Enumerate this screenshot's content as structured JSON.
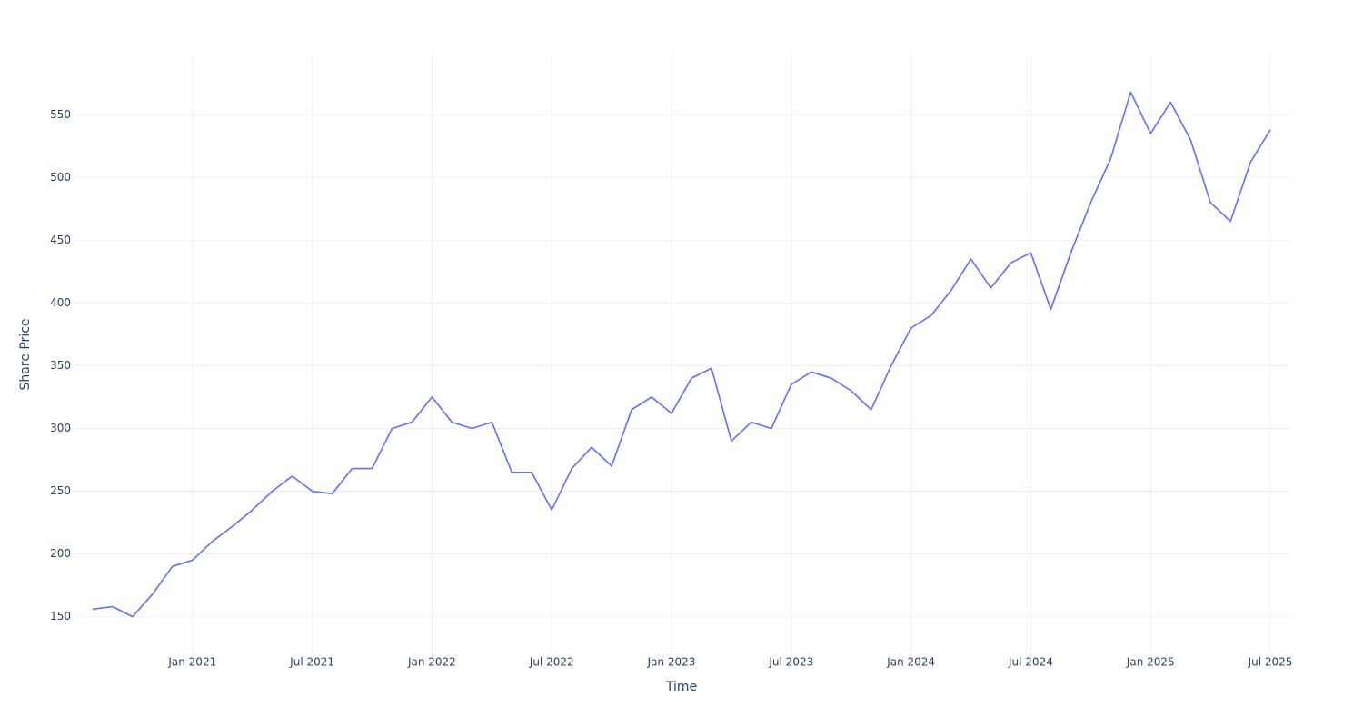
{
  "chart_data": {
    "type": "line",
    "x_label": "Time",
    "y_label": "Share Price",
    "x": [
      "2020-08",
      "2020-09",
      "2020-10",
      "2020-11",
      "2020-12",
      "2021-01",
      "2021-02",
      "2021-03",
      "2021-04",
      "2021-05",
      "2021-06",
      "2021-07",
      "2021-08",
      "2021-09",
      "2021-10",
      "2021-11",
      "2021-12",
      "2022-01",
      "2022-02",
      "2022-03",
      "2022-04",
      "2022-05",
      "2022-06",
      "2022-07",
      "2022-08",
      "2022-09",
      "2022-10",
      "2022-11",
      "2022-12",
      "2023-01",
      "2023-02",
      "2023-03",
      "2023-04",
      "2023-05",
      "2023-06",
      "2023-07",
      "2023-08",
      "2023-09",
      "2023-10",
      "2023-11",
      "2023-12",
      "2024-01",
      "2024-02",
      "2024-03",
      "2024-04",
      "2024-05",
      "2024-06",
      "2024-07",
      "2024-08",
      "2024-09",
      "2024-10",
      "2024-11",
      "2024-12",
      "2025-01",
      "2025-02",
      "2025-03",
      "2025-04",
      "2025-05",
      "2025-06",
      "2025-07"
    ],
    "series": [
      {
        "name": "Share Price",
        "color": "#636efa",
        "values": [
          156,
          158,
          150,
          168,
          190,
          195,
          210,
          222,
          235,
          250,
          262,
          250,
          248,
          268,
          268,
          300,
          305,
          325,
          305,
          300,
          305,
          265,
          265,
          235,
          268,
          285,
          270,
          315,
          325,
          312,
          340,
          348,
          290,
          305,
          300,
          335,
          345,
          340,
          330,
          315,
          350,
          380,
          390,
          410,
          435,
          412,
          432,
          440,
          395,
          440,
          480,
          515,
          568,
          535,
          560,
          530,
          480,
          465,
          512,
          538
        ]
      }
    ],
    "xlim": [
      "2020-07",
      "2025-08"
    ],
    "xticks": [
      {
        "value": "2021-01",
        "label": "Jan 2021"
      },
      {
        "value": "2021-07",
        "label": "Jul 2021"
      },
      {
        "value": "2022-01",
        "label": "Jan 2022"
      },
      {
        "value": "2022-07",
        "label": "Jul 2022"
      },
      {
        "value": "2023-01",
        "label": "Jan 2023"
      },
      {
        "value": "2023-07",
        "label": "Jul 2023"
      },
      {
        "value": "2024-01",
        "label": "Jan 2024"
      },
      {
        "value": "2024-07",
        "label": "Jul 2024"
      },
      {
        "value": "2025-01",
        "label": "Jan 2025"
      },
      {
        "value": "2025-07",
        "label": "Jul 2025"
      }
    ],
    "ylim": [
      120,
      598
    ],
    "yticks": [
      150,
      200,
      250,
      300,
      350,
      400,
      450,
      500,
      550
    ],
    "grid": true
  }
}
